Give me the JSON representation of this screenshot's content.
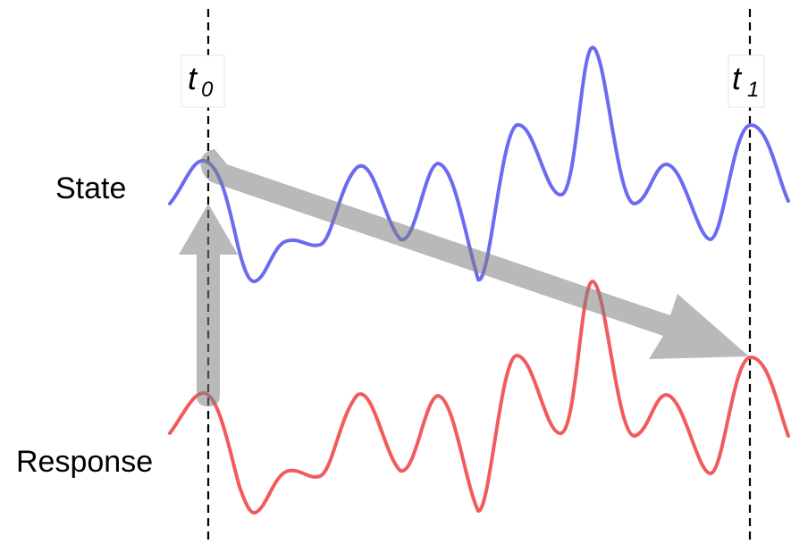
{
  "rows": {
    "state_label": "State",
    "response_label": "Response"
  },
  "markers": [
    {
      "base": "t",
      "sub": "0"
    },
    {
      "base": "t",
      "sub": "1"
    }
  ],
  "colors": {
    "state_signal": "#6b6bf2",
    "response_signal": "#f25b5b",
    "arrow": "#808080",
    "marker_line": "#000000"
  }
}
